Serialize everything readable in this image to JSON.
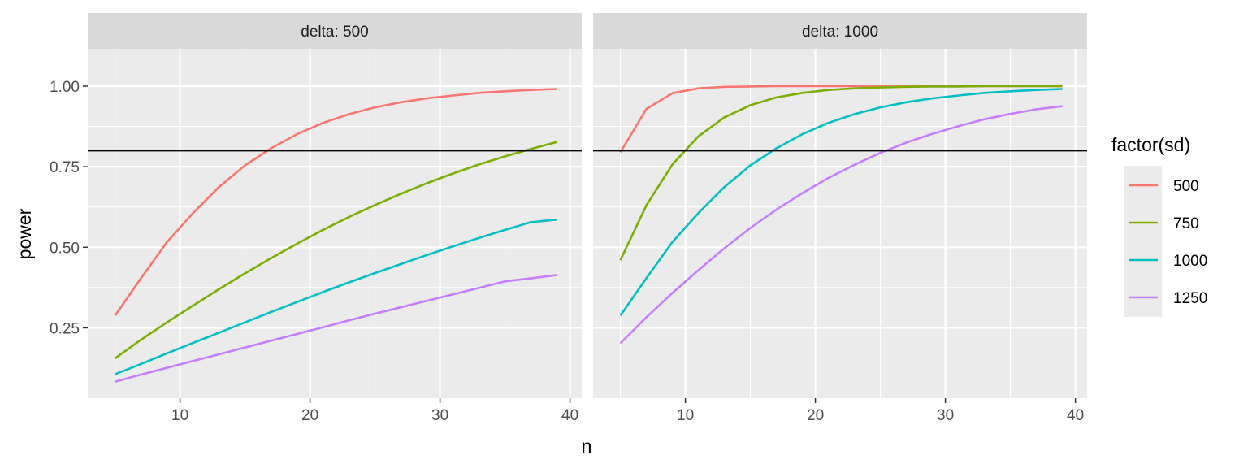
{
  "chart_data": {
    "type": "line",
    "xlabel": "n",
    "ylabel": "power",
    "xlim": [
      2.9,
      40.9
    ],
    "ylim": [
      0.0318,
      1.1159
    ],
    "x_ticks": [
      10,
      20,
      30,
      40
    ],
    "y_ticks": [
      0.25,
      0.5,
      0.75,
      1.0
    ],
    "y_tick_labels": [
      "0.25",
      "0.50",
      "0.75",
      "1.00"
    ],
    "hline": 0.8,
    "grid": true,
    "legend": {
      "title": "factor(sd)",
      "position": "right",
      "entries": [
        "500",
        "750",
        "1000",
        "1250"
      ]
    },
    "colors": {
      "500": "#F8766D",
      "750": "#7CAE00",
      "1000": "#00BFC4",
      "1250": "#C77CFF"
    },
    "x": [
      5,
      7,
      9,
      11,
      13,
      15,
      17,
      19,
      21,
      23,
      25,
      27,
      29,
      31,
      33,
      35,
      37,
      39
    ],
    "panels": [
      {
        "strip": "delta: 500",
        "series": [
          {
            "name": "500",
            "values": [
              0.288,
              0.404,
              0.516,
              0.606,
              0.687,
              0.754,
              0.807,
              0.851,
              0.886,
              0.913,
              0.934,
              0.95,
              0.962,
              0.971,
              0.979,
              0.984,
              0.988,
              0.991
            ]
          },
          {
            "name": "750",
            "values": [
              0.155,
              0.213,
              0.267,
              0.319,
              0.37,
              0.419,
              0.466,
              0.511,
              0.554,
              0.594,
              0.631,
              0.666,
              0.699,
              0.729,
              0.757,
              0.782,
              0.805,
              0.827
            ]
          },
          {
            "name": "1000",
            "values": [
              0.106,
              0.138,
              0.171,
              0.203,
              0.235,
              0.267,
              0.299,
              0.33,
              0.361,
              0.391,
              0.42,
              0.448,
              0.476,
              0.503,
              0.529,
              0.554,
              0.578,
              0.586
            ]
          },
          {
            "name": "1250",
            "values": [
              0.083,
              0.105,
              0.126,
              0.147,
              0.168,
              0.189,
              0.21,
              0.231,
              0.252,
              0.273,
              0.294,
              0.314,
              0.334,
              0.354,
              0.374,
              0.394,
              0.404,
              0.414
            ]
          }
        ]
      },
      {
        "strip": "delta: 1000",
        "series": [
          {
            "name": "500",
            "values": [
              0.795,
              0.929,
              0.978,
              0.993,
              0.998,
              0.999,
              1.0,
              1.0,
              1.0,
              1.0,
              1.0,
              1.0,
              1.0,
              1.0,
              1.0,
              1.0,
              1.0,
              1.0
            ]
          },
          {
            "name": "750",
            "values": [
              0.46,
              0.63,
              0.757,
              0.844,
              0.903,
              0.941,
              0.965,
              0.979,
              0.988,
              0.993,
              0.996,
              0.998,
              0.999,
              0.999,
              1.0,
              1.0,
              1.0,
              1.0
            ]
          },
          {
            "name": "1000",
            "values": [
              0.288,
              0.404,
              0.516,
              0.606,
              0.687,
              0.754,
              0.807,
              0.851,
              0.886,
              0.913,
              0.934,
              0.95,
              0.962,
              0.971,
              0.979,
              0.984,
              0.988,
              0.991
            ]
          },
          {
            "name": "1250",
            "values": [
              0.202,
              0.283,
              0.358,
              0.429,
              0.497,
              0.56,
              0.617,
              0.668,
              0.715,
              0.756,
              0.793,
              0.825,
              0.852,
              0.876,
              0.897,
              0.914,
              0.928,
              0.938
            ]
          }
        ]
      }
    ]
  }
}
